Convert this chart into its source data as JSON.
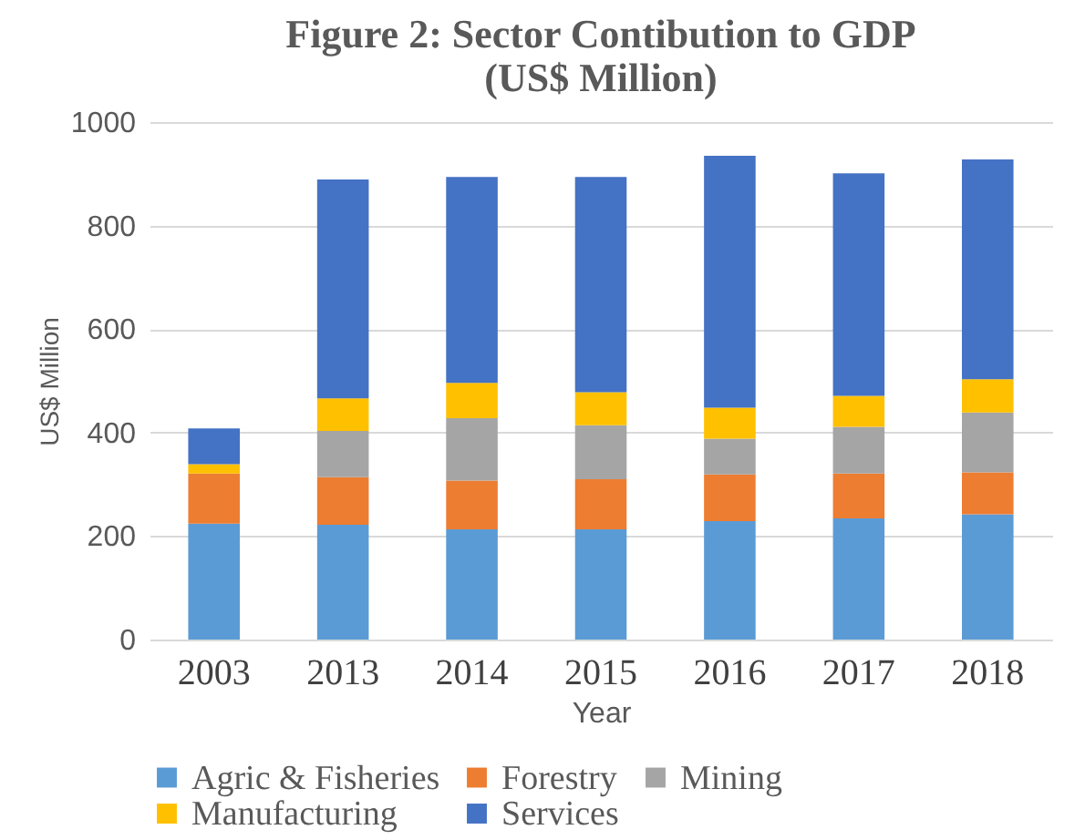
{
  "chart_data": {
    "type": "bar",
    "title": "Figure 2: Sector Contibution to GDP\n(US$ Million)",
    "xlabel": "Year",
    "ylabel": "US$ Million",
    "categories": [
      "2003",
      "2013",
      "2014",
      "2015",
      "2016",
      "2017",
      "2018"
    ],
    "stacked": true,
    "series": [
      {
        "name": "Agric & Fisheries",
        "color": "#5b9bd5",
        "values": [
          224,
          222,
          213,
          213,
          229,
          234,
          242
        ]
      },
      {
        "name": "Forestry",
        "color": "#ed7d31",
        "values": [
          97,
          92,
          94,
          97,
          90,
          87,
          81
        ]
      },
      {
        "name": "Mining",
        "color": "#a5a5a5",
        "values": [
          0,
          89,
          121,
          104,
          69,
          90,
          116
        ]
      },
      {
        "name": "Manufacturing",
        "color": "#ffc000",
        "values": [
          18,
          63,
          68,
          64,
          60,
          60,
          64
        ]
      },
      {
        "name": "Services",
        "color": "#4472c4",
        "values": [
          69,
          423,
          398,
          416,
          487,
          430,
          425
        ]
      }
    ],
    "ylim": [
      0,
      1000
    ],
    "yticks": [
      0,
      200,
      400,
      600,
      800,
      1000
    ],
    "grid": "y",
    "legend": "bottom"
  }
}
